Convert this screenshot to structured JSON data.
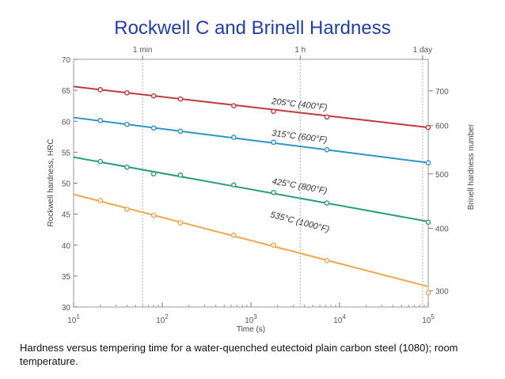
{
  "slide": {
    "title": "Rockwell C and Brinell Hardness",
    "caption": "Hardness versus tempering time for a water-quenched eutectoid plain carbon steel (1080); room temperature."
  },
  "chart_data": {
    "type": "line",
    "title": "",
    "xlabel": "Time (s)",
    "ylabel": "Rockwell hardness, HRC",
    "y2label": "Brinell hardness number",
    "xscale": "log",
    "xlim": [
      10,
      100000
    ],
    "ylim": [
      30,
      70
    ],
    "x_ticks": [
      {
        "base": "10",
        "exp": "1",
        "value": 10
      },
      {
        "base": "10",
        "exp": "2",
        "value": 100
      },
      {
        "base": "10",
        "exp": "3",
        "value": 1000
      },
      {
        "base": "10",
        "exp": "4",
        "value": 10000
      },
      {
        "base": "10",
        "exp": "5",
        "value": 100000
      }
    ],
    "y_ticks": [
      "30",
      "35",
      "40",
      "45",
      "50",
      "55",
      "60",
      "65",
      "70"
    ],
    "top_ticks": [
      {
        "label": "1 min",
        "value": 60
      },
      {
        "label": "1 h",
        "value": 3600
      },
      {
        "label": "1 day",
        "value": 86400
      }
    ],
    "right_ticks": [
      {
        "label": "700",
        "hrc": 64.9
      },
      {
        "label": "600",
        "hrc": 59.3
      },
      {
        "label": "500",
        "hrc": 51.5
      },
      {
        "label": "400",
        "hrc": 42.7
      },
      {
        "label": "300",
        "hrc": 32.6
      }
    ],
    "series": [
      {
        "name": "205°C (400°F)",
        "color": "#c0393b",
        "line": [
          [
            10,
            65.6
          ],
          [
            100000,
            59.0
          ]
        ],
        "points": [
          [
            20,
            65.1
          ],
          [
            40,
            64.6
          ],
          [
            80,
            64.1
          ],
          [
            160,
            63.6
          ],
          [
            640,
            62.5
          ],
          [
            1800,
            61.6
          ],
          [
            7200,
            60.7
          ],
          [
            100000,
            59.0
          ]
        ],
        "label_x": 3500,
        "label_y": 62.3
      },
      {
        "name": "315°C (600°F)",
        "color": "#2f93c7",
        "line": [
          [
            10,
            60.6
          ],
          [
            100000,
            53.3
          ]
        ],
        "points": [
          [
            20,
            60.1
          ],
          [
            40,
            59.5
          ],
          [
            80,
            58.9
          ],
          [
            160,
            58.4
          ],
          [
            640,
            57.4
          ],
          [
            1800,
            56.6
          ],
          [
            7200,
            55.4
          ],
          [
            100000,
            53.3
          ]
        ],
        "label_x": 3500,
        "label_y": 57.1
      },
      {
        "name": "425°C (800°F)",
        "color": "#2c9d7c",
        "line": [
          [
            10,
            54.2
          ],
          [
            100000,
            43.8
          ]
        ],
        "points": [
          [
            20,
            53.5
          ],
          [
            40,
            52.6
          ],
          [
            80,
            51.5
          ],
          [
            160,
            51.3
          ],
          [
            640,
            49.7
          ],
          [
            1800,
            48.5
          ],
          [
            7200,
            46.8
          ],
          [
            100000,
            43.7
          ]
        ],
        "label_x": 3500,
        "label_y": 49.1
      },
      {
        "name": "535°C (1000°F)",
        "color": "#f0a64a",
        "line": [
          [
            10,
            48.2
          ],
          [
            100000,
            33.3
          ]
        ],
        "points": [
          [
            20,
            47.2
          ],
          [
            40,
            45.8
          ],
          [
            80,
            44.8
          ],
          [
            160,
            43.6
          ],
          [
            640,
            41.6
          ],
          [
            1800,
            40.0
          ],
          [
            7200,
            37.5
          ],
          [
            100000,
            32.3
          ]
        ],
        "label_x": 3500,
        "label_y": 43.3
      }
    ]
  }
}
